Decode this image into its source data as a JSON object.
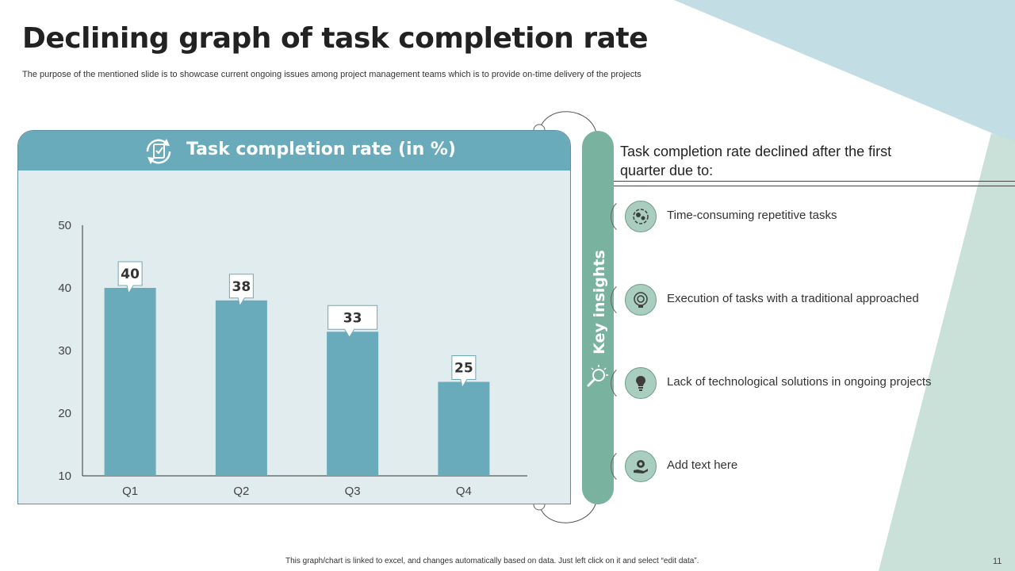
{
  "slide": {
    "title": "Declining graph of task completion rate",
    "subtitle": "The purpose of the mentioned slide is to showcase current ongoing issues among project management teams which is to provide on-time delivery of the projects",
    "footer_note": "This graph/chart is linked to excel, and changes automatically based on data. Just left click on it and select “edit data”.",
    "page_number": "11"
  },
  "colors": {
    "bar": "#6aabbb",
    "panel_bg": "#e1ecef",
    "pill": "#7ab2a0",
    "accent_teal": "#c3dde4",
    "accent_green": "#c9e1d8"
  },
  "chart_data": {
    "type": "bar",
    "title": "Task completion rate (in %)",
    "categories": [
      "Q1",
      "Q2",
      "Q3",
      "Q4"
    ],
    "values": [
      40,
      38,
      33,
      25
    ],
    "yticks": [
      10,
      20,
      30,
      40,
      50
    ],
    "ylim": [
      10,
      50
    ],
    "xlabel": "",
    "ylabel": "",
    "grid": false,
    "legend": "none"
  },
  "insights": {
    "panel_label": "Key insights",
    "heading": "Task completion rate declined after the first quarter due to:",
    "items": [
      {
        "text": "Time-consuming repetitive tasks",
        "icon": "gears-icon"
      },
      {
        "text": "Execution of tasks with a traditional approached",
        "icon": "target-bulb-icon"
      },
      {
        "text": "Lack of technological solutions in ongoing projects",
        "icon": "lightbulb-icon"
      },
      {
        "text": "Add text here",
        "icon": "hand-gear-icon"
      }
    ]
  }
}
